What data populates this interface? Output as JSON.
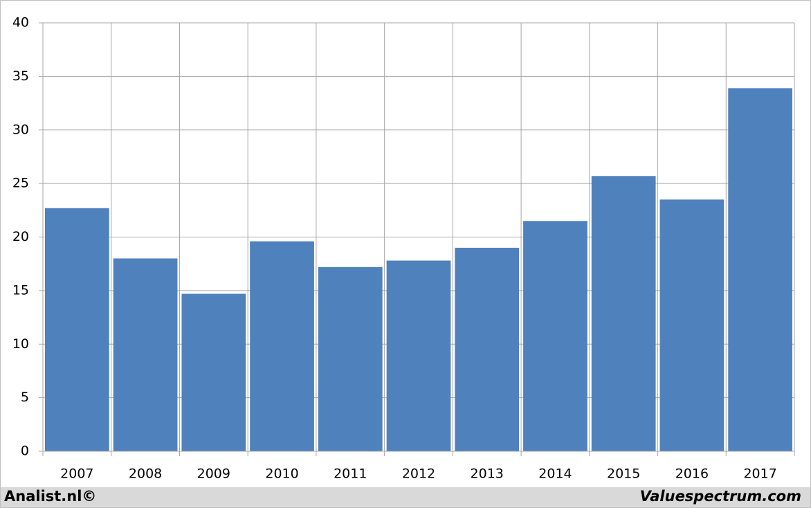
{
  "chart_data": {
    "type": "bar",
    "categories": [
      "2007",
      "2008",
      "2009",
      "2010",
      "2011",
      "2012",
      "2013",
      "2014",
      "2015",
      "2016",
      "2017"
    ],
    "values": [
      22.7,
      18.0,
      14.7,
      19.6,
      17.2,
      17.8,
      19.0,
      21.5,
      25.7,
      23.5,
      33.9
    ],
    "color": "#4f81bd",
    "ylim": [
      0,
      40
    ],
    "yticks": [
      0,
      5,
      10,
      15,
      20,
      25,
      30,
      35,
      40
    ],
    "grid": true
  },
  "footer": {
    "left": "Analist.nl©",
    "right": "Valuespectrum.com"
  }
}
